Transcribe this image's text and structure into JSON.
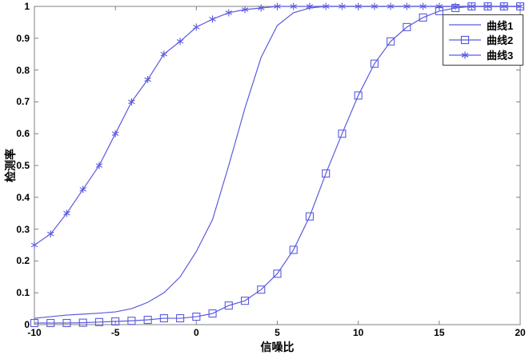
{
  "chart_data": {
    "type": "line",
    "title": "",
    "xlabel": "信噪比",
    "ylabel": "检测率",
    "xlim": [
      -10,
      20
    ],
    "ylim": [
      0,
      1
    ],
    "x_ticks": [
      -10,
      -5,
      0,
      5,
      10,
      15,
      20
    ],
    "y_ticks": [
      0,
      0.1,
      0.2,
      0.3,
      0.4,
      0.5,
      0.6,
      0.7,
      0.8,
      0.9,
      1
    ],
    "y_tick_labels": [
      "0",
      "0.1",
      "0.2",
      "0.3",
      "0.4",
      "0.5",
      "0.6",
      "0.7",
      "0.8",
      "0.9",
      "1"
    ],
    "grid": false,
    "legend_position": "top-right",
    "line_color": "#5a5ae0",
    "axis_color": "#808080",
    "text_color": "#000000",
    "x": [
      -10,
      -9,
      -8,
      -7,
      -6,
      -5,
      -4,
      -3,
      -2,
      -1,
      0,
      1,
      2,
      3,
      4,
      5,
      6,
      7,
      8,
      9,
      10,
      11,
      12,
      13,
      14,
      15,
      16,
      17,
      18,
      19,
      20
    ],
    "series": [
      {
        "name": "曲线1",
        "marker": "none",
        "values": [
          0.02,
          0.025,
          0.03,
          0.033,
          0.036,
          0.04,
          0.05,
          0.07,
          0.1,
          0.15,
          0.23,
          0.33,
          0.5,
          0.68,
          0.84,
          0.94,
          0.98,
          0.995,
          1,
          1,
          1,
          1,
          1,
          1,
          1,
          1,
          1,
          1,
          1,
          1,
          1
        ]
      },
      {
        "name": "曲线2",
        "marker": "square",
        "values": [
          0.005,
          0.005,
          0.005,
          0.006,
          0.008,
          0.01,
          0.012,
          0.015,
          0.02,
          0.02,
          0.025,
          0.035,
          0.06,
          0.075,
          0.11,
          0.16,
          0.235,
          0.34,
          0.475,
          0.6,
          0.72,
          0.82,
          0.89,
          0.935,
          0.965,
          0.985,
          0.995,
          1,
          1,
          1,
          1
        ]
      },
      {
        "name": "曲线3",
        "marker": "asterisk",
        "values": [
          0.25,
          0.285,
          0.35,
          0.425,
          0.5,
          0.6,
          0.7,
          0.77,
          0.85,
          0.89,
          0.935,
          0.96,
          0.98,
          0.99,
          0.995,
          1,
          1,
          1,
          1,
          1,
          1,
          1,
          1,
          1,
          1,
          1,
          1,
          1,
          1,
          1,
          1
        ]
      }
    ]
  }
}
